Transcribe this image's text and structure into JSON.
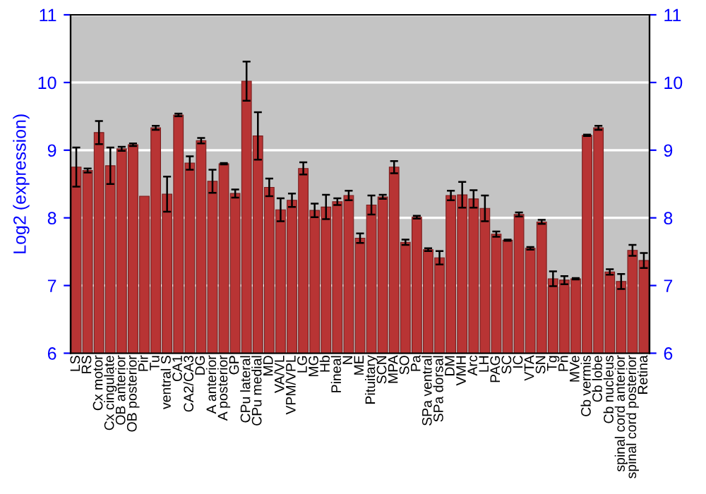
{
  "chart_data": {
    "type": "bar",
    "ylabel": "Log2 (expression)",
    "categories": [
      "LS",
      "RS",
      "Cx motor",
      "Cx cingulate",
      "OB anterior",
      "OB posterior",
      "Pir",
      "Tu",
      "ventral S",
      "CA1",
      "CA2/CA3",
      "DG",
      "A anterior",
      "A posterior",
      "GP",
      "CPu lateral",
      "CPu medial",
      "MD",
      "VA/VL",
      "VPM/VPL",
      "LG",
      "MG",
      "Hb",
      "Pineal",
      "N",
      "ME",
      "Pituitary",
      "SCN",
      "MPA",
      "SO",
      "Pa",
      "SPa ventral",
      "SPa dorsal",
      "DM",
      "VMH",
      "Arc",
      "LH",
      "PAG",
      "SC",
      "IC",
      "VTA",
      "SN",
      "Tg",
      "Pn",
      "MVe",
      "Cb vermis",
      "Cb lobe",
      "Cb nucleus",
      "spinal cord anterior",
      "spinal cord posterior",
      "Retina"
    ],
    "values": [
      8.75,
      8.7,
      9.26,
      8.77,
      9.02,
      9.08,
      8.32,
      9.33,
      8.35,
      9.52,
      8.81,
      9.14,
      8.54,
      8.8,
      8.36,
      10.02,
      9.21,
      8.45,
      8.12,
      8.26,
      8.73,
      8.11,
      8.16,
      8.24,
      8.33,
      7.7,
      8.19,
      8.31,
      8.75,
      7.64,
      8.01,
      7.53,
      7.41,
      8.33,
      8.34,
      8.28,
      8.14,
      7.76,
      7.67,
      8.05,
      7.55,
      7.94,
      7.1,
      7.08,
      7.1,
      9.22,
      9.33,
      7.2,
      7.06,
      7.52,
      7.37
    ],
    "errors": [
      0.29,
      0.03,
      0.17,
      0.27,
      0.03,
      0.02,
      null,
      0.03,
      0.26,
      0.02,
      0.1,
      0.04,
      0.17,
      0.01,
      0.06,
      0.29,
      0.35,
      0.13,
      0.17,
      0.1,
      0.09,
      0.1,
      0.18,
      0.05,
      0.07,
      0.07,
      0.14,
      0.03,
      0.09,
      0.04,
      0.02,
      0.02,
      0.1,
      0.07,
      0.19,
      0.13,
      0.19,
      0.04,
      0.01,
      0.03,
      0.02,
      0.03,
      0.11,
      0.06,
      0.01,
      0.01,
      0.03,
      0.04,
      0.11,
      0.08,
      0.11
    ],
    "color": "#b83434",
    "ylim": [
      6,
      11
    ],
    "yticks": [
      6,
      7,
      8,
      9,
      10,
      11
    ],
    "y2lim": [
      6,
      11
    ],
    "y2ticks": [
      6,
      7,
      8,
      9,
      10,
      11
    ],
    "grid": "y"
  }
}
